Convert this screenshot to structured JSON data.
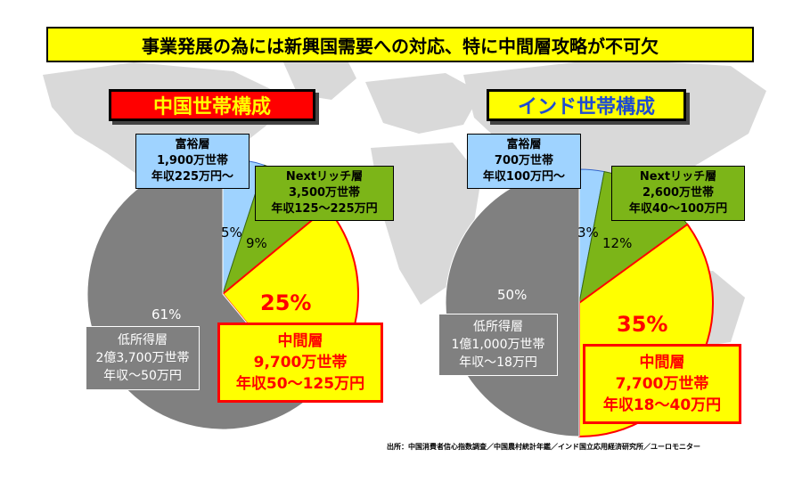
{
  "headline": "事業発展の為には新興国需要への対応、特に中間層攻略が不可欠",
  "source": "出所：中国消費者信心指数調査／中国農村統計年鑑／インド国立応用経済研究所／ユーロモニター",
  "colors": {
    "rich": "#9fd3ff",
    "next_rich": "#7cb518",
    "middle": "#ffff00",
    "low": "#808080",
    "accent_red": "#ff0000",
    "map": "#d9d9d9"
  },
  "chart_data": [
    {
      "type": "pie",
      "title": "中国世帯構成",
      "segments": [
        {
          "key": "rich",
          "value": 5,
          "label": "5%",
          "name": "富裕層",
          "households": "1,900万世帯",
          "income": "年収225万円～"
        },
        {
          "key": "next_rich",
          "value": 9,
          "label": "9%",
          "name": "Nextリッチ層",
          "households": "3,500万世帯",
          "income": "年収125～225万円"
        },
        {
          "key": "middle",
          "value": 25,
          "label": "25%",
          "name": "中間層",
          "households": "9,700万世帯",
          "income": "年収50～125万円"
        },
        {
          "key": "low",
          "value": 61,
          "label": "61%",
          "name": "低所得層",
          "households": "2億3,700万世帯",
          "income": "年収～50万円"
        }
      ]
    },
    {
      "type": "pie",
      "title": "インド世帯構成",
      "segments": [
        {
          "key": "rich",
          "value": 3,
          "label": "3%",
          "name": "富裕層",
          "households": "700万世帯",
          "income": "年収100万円～"
        },
        {
          "key": "next_rich",
          "value": 12,
          "label": "12%",
          "name": "Nextリッチ層",
          "households": "2,600万世帯",
          "income": "年収40～100万円"
        },
        {
          "key": "middle",
          "value": 35,
          "label": "35%",
          "name": "中間層",
          "households": "7,700万世帯",
          "income": "年収18～40万円"
        },
        {
          "key": "low",
          "value": 50,
          "label": "50%",
          "name": "低所得層",
          "households": "1億1,000万世帯",
          "income": "年収～18万円"
        }
      ]
    }
  ]
}
